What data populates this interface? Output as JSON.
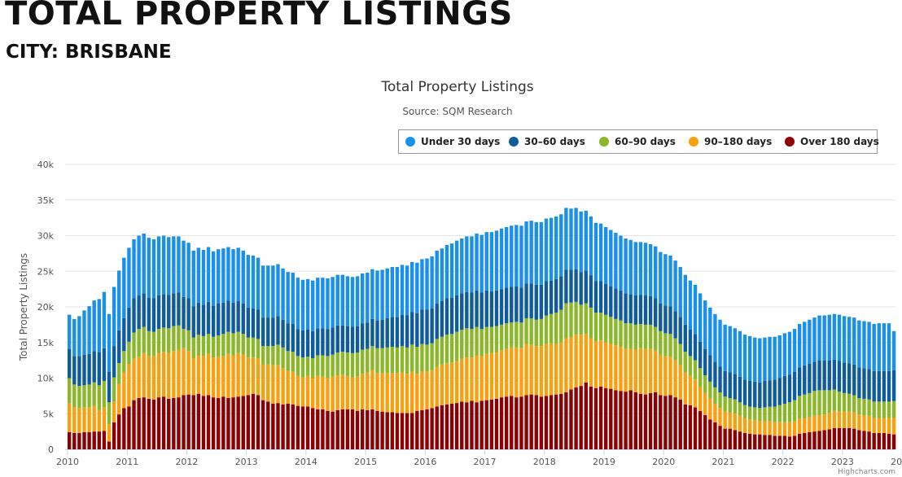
{
  "page": {
    "title": "TOTAL PROPERTY LISTINGS",
    "subtitle": "CITY: BRISBANE"
  },
  "credits": "Highcharts.com",
  "chart_data": {
    "type": "bar",
    "stacked": true,
    "title": "Total Property Listings",
    "subtitle": "Source: SQM Research",
    "xlabel": "",
    "ylabel": "Total Property Listings",
    "ylim": [
      0,
      40000
    ],
    "y_ticks": [
      "0",
      "5k",
      "10k",
      "15k",
      "20k",
      "25k",
      "30k",
      "35k",
      "40k"
    ],
    "x_ticks": [
      "2010",
      "2011",
      "2012",
      "2013",
      "2014",
      "2015",
      "2016",
      "2017",
      "2018",
      "2019",
      "2020",
      "2021",
      "2022",
      "2023",
      "2024"
    ],
    "grid": true,
    "legend_position": "top-right",
    "start_month": "2010-01",
    "series": [
      {
        "name": "Over 180 days",
        "color": "#8b0000",
        "values": [
          2400,
          2300,
          2300,
          2400,
          2400,
          2500,
          2500,
          2600,
          1100,
          3800,
          4900,
          5800,
          6000,
          6900,
          7200,
          7300,
          7100,
          7000,
          7300,
          7400,
          7100,
          7200,
          7300,
          7600,
          7700,
          7600,
          7800,
          7500,
          7600,
          7300,
          7200,
          7400,
          7200,
          7300,
          7400,
          7500,
          7600,
          7800,
          7600,
          6900,
          6700,
          6400,
          6500,
          6300,
          6400,
          6300,
          6100,
          6000,
          6000,
          5800,
          5600,
          5600,
          5400,
          5300,
          5500,
          5600,
          5600,
          5600,
          5400,
          5600,
          5500,
          5600,
          5400,
          5300,
          5200,
          5200,
          5100,
          5100,
          5100,
          5100,
          5400,
          5500,
          5600,
          5800,
          6000,
          6200,
          6300,
          6400,
          6500,
          6700,
          6600,
          6800,
          6600,
          6800,
          6900,
          7000,
          7100,
          7300,
          7400,
          7500,
          7300,
          7400,
          7600,
          7700,
          7600,
          7400,
          7500,
          7600,
          7700,
          7800,
          8000,
          8400,
          8700,
          8900,
          9400,
          8800,
          8600,
          8800,
          8600,
          8500,
          8300,
          8200,
          8100,
          8300,
          8000,
          7800,
          7700,
          7900,
          8000,
          7600,
          7500,
          7600,
          7300,
          7000,
          6300,
          6200,
          5900,
          5400,
          4800,
          4200,
          3800,
          3300,
          2900,
          2900,
          2700,
          2500,
          2300,
          2200,
          2100,
          2100,
          2000,
          2000,
          1900,
          1900,
          1900,
          1800,
          1900,
          2200,
          2300,
          2400,
          2500,
          2600,
          2700,
          2800,
          3000,
          3000,
          3000,
          3000,
          2900,
          2700,
          2600,
          2500,
          2300,
          2300,
          2300,
          2200,
          2100
        ]
      },
      {
        "name": "90–180 days",
        "color": "#f7a111",
        "values": [
          4100,
          3600,
          3500,
          3500,
          3500,
          3600,
          3000,
          3300,
          2400,
          2900,
          4300,
          5000,
          6000,
          5800,
          5800,
          6200,
          6000,
          6100,
          6200,
          6300,
          6400,
          6600,
          6700,
          6600,
          6100,
          5200,
          5400,
          5600,
          5800,
          5600,
          5800,
          5700,
          6200,
          5900,
          6100,
          5800,
          5300,
          5100,
          5200,
          5000,
          5200,
          5400,
          5300,
          5100,
          4600,
          4600,
          4200,
          4100,
          4300,
          4200,
          4700,
          4600,
          4600,
          4900,
          4900,
          4900,
          4700,
          4500,
          4800,
          5000,
          5300,
          5500,
          5300,
          5400,
          5500,
          5500,
          5600,
          5700,
          5500,
          5800,
          5200,
          5400,
          5300,
          5300,
          5600,
          5700,
          5800,
          5800,
          5900,
          6000,
          6300,
          6100,
          6600,
          6300,
          6500,
          6500,
          6500,
          6600,
          6700,
          6800,
          7000,
          6800,
          7200,
          7000,
          6900,
          7100,
          7300,
          7300,
          7100,
          7200,
          7600,
          7300,
          7400,
          7200,
          6800,
          6800,
          6600,
          6500,
          6400,
          6300,
          6300,
          6200,
          6000,
          5800,
          6000,
          6400,
          6400,
          6200,
          5900,
          5700,
          5600,
          5400,
          5200,
          4800,
          4500,
          4100,
          3900,
          3400,
          3100,
          2900,
          2600,
          2500,
          2400,
          2300,
          2300,
          2200,
          2100,
          2000,
          2000,
          1900,
          2000,
          2000,
          1900,
          1900,
          1900,
          2000,
          2000,
          2100,
          2100,
          2100,
          2200,
          2200,
          2200,
          2300,
          2400,
          2300,
          2300,
          2300,
          2300,
          2200,
          2200,
          2200,
          2100,
          2100,
          2100,
          2200,
          2300
        ]
      },
      {
        "name": "60–90 days",
        "color": "#8ab82a",
        "values": [
          3500,
          3200,
          3100,
          3100,
          3200,
          3300,
          3500,
          3700,
          3100,
          3400,
          2900,
          3000,
          3100,
          3700,
          3900,
          3700,
          3500,
          3400,
          3400,
          3400,
          3500,
          3500,
          3400,
          2700,
          2900,
          2900,
          2900,
          2800,
          2800,
          2900,
          3000,
          3100,
          3100,
          3100,
          3000,
          2900,
          2800,
          2800,
          2700,
          2600,
          2600,
          2700,
          2900,
          2900,
          2800,
          2800,
          2800,
          2800,
          2700,
          2800,
          2900,
          3000,
          3100,
          3100,
          3200,
          3200,
          3300,
          3400,
          3400,
          3400,
          3300,
          3400,
          3500,
          3500,
          3600,
          3700,
          3600,
          3700,
          3700,
          3800,
          3800,
          3900,
          3800,
          3800,
          3900,
          3900,
          4000,
          4000,
          4100,
          4100,
          4100,
          4000,
          4000,
          3800,
          3800,
          3700,
          3700,
          3600,
          3600,
          3500,
          3600,
          3600,
          3600,
          3700,
          3700,
          3800,
          4000,
          4100,
          4400,
          4600,
          4900,
          4900,
          4600,
          4200,
          4300,
          4300,
          4000,
          3900,
          3900,
          3800,
          3700,
          3700,
          3600,
          3600,
          3500,
          3400,
          3400,
          3400,
          3300,
          3300,
          3200,
          3200,
          3100,
          3000,
          2900,
          2800,
          2700,
          2600,
          2500,
          2400,
          2300,
          2200,
          2100,
          2000,
          2000,
          1900,
          1800,
          1800,
          1800,
          1800,
          1900,
          2000,
          2200,
          2400,
          2600,
          2800,
          3000,
          3200,
          3300,
          3400,
          3500,
          3500,
          3400,
          3200,
          3000,
          2800,
          2600,
          2500,
          2400,
          2300,
          2300,
          2300,
          2300,
          2300,
          2300,
          2300,
          2400
        ]
      },
      {
        "name": "30–60 days",
        "color": "#0f5c9c",
        "values": [
          4100,
          4000,
          4200,
          4300,
          4300,
          4400,
          4600,
          4600,
          4300,
          4400,
          4600,
          4600,
          4800,
          4800,
          4700,
          4700,
          4700,
          4700,
          4700,
          4700,
          4700,
          4600,
          4600,
          4500,
          4500,
          4400,
          4500,
          4400,
          4500,
          4400,
          4500,
          4400,
          4400,
          4300,
          4300,
          4300,
          4200,
          4100,
          4100,
          4000,
          4000,
          4000,
          4000,
          3900,
          3900,
          3900,
          3800,
          3800,
          3800,
          3800,
          3800,
          3800,
          3800,
          3800,
          3800,
          3700,
          3700,
          3700,
          3700,
          3700,
          3700,
          3800,
          3900,
          4000,
          4100,
          4200,
          4300,
          4400,
          4500,
          4600,
          4700,
          4800,
          4900,
          4900,
          5000,
          5000,
          5100,
          5100,
          5100,
          5100,
          5100,
          5100,
          5100,
          5100,
          5100,
          5000,
          5000,
          5000,
          5000,
          5000,
          5000,
          4900,
          4900,
          4900,
          4900,
          4800,
          4800,
          4700,
          4700,
          4700,
          4700,
          4600,
          4600,
          4600,
          4600,
          4500,
          4400,
          4400,
          4300,
          4300,
          4300,
          4200,
          4200,
          4100,
          4100,
          4100,
          4100,
          4000,
          4000,
          3900,
          3900,
          3900,
          3800,
          3800,
          3800,
          3700,
          3700,
          3700,
          3700,
          3700,
          3600,
          3600,
          3600,
          3600,
          3600,
          3600,
          3600,
          3600,
          3600,
          3600,
          3700,
          3700,
          3800,
          3800,
          3900,
          3900,
          4000,
          4000,
          4100,
          4100,
          4100,
          4200,
          4200,
          4200,
          4200,
          4300,
          4300,
          4300,
          4300,
          4300,
          4300,
          4300,
          4300,
          4300,
          4300,
          4300,
          4300
        ]
      },
      {
        "name": "Under 30 days",
        "color": "#1a90e8",
        "values": [
          4800,
          5200,
          5600,
          6200,
          6700,
          7100,
          7500,
          7900,
          8100,
          8300,
          8400,
          8500,
          8400,
          8300,
          8400,
          8400,
          8400,
          8300,
          8300,
          8200,
          8100,
          8000,
          7900,
          7900,
          7800,
          7800,
          7700,
          7700,
          7700,
          7600,
          7600,
          7600,
          7500,
          7500,
          7500,
          7400,
          7400,
          7400,
          7300,
          7300,
          7300,
          7300,
          7300,
          7200,
          7200,
          7200,
          7200,
          7100,
          7100,
          7100,
          7100,
          7100,
          7100,
          7100,
          7100,
          7100,
          7000,
          7000,
          7000,
          7000,
          7000,
          7000,
          7000,
          7000,
          7000,
          7000,
          7000,
          7000,
          7000,
          7000,
          7100,
          7100,
          7200,
          7300,
          7400,
          7400,
          7500,
          7600,
          7700,
          7700,
          7800,
          7900,
          8000,
          8100,
          8200,
          8300,
          8400,
          8500,
          8500,
          8600,
          8600,
          8700,
          8700,
          8800,
          8800,
          8800,
          8800,
          8800,
          8800,
          8700,
          8700,
          8600,
          8600,
          8500,
          8400,
          8300,
          8200,
          8100,
          8000,
          7900,
          7800,
          7700,
          7700,
          7600,
          7500,
          7400,
          7400,
          7300,
          7300,
          7200,
          7200,
          7100,
          7100,
          7000,
          7000,
          6900,
          6900,
          6800,
          6800,
          6700,
          6700,
          6600,
          6500,
          6500,
          6400,
          6400,
          6300,
          6300,
          6200,
          6200,
          6100,
          6100,
          6000,
          6000,
          6000,
          6000,
          6000,
          6100,
          6100,
          6200,
          6200,
          6300,
          6300,
          6400,
          6400,
          6500,
          6500,
          6500,
          6600,
          6600,
          6600,
          6600,
          6600,
          6700,
          6700,
          6700,
          5500
        ]
      }
    ]
  }
}
